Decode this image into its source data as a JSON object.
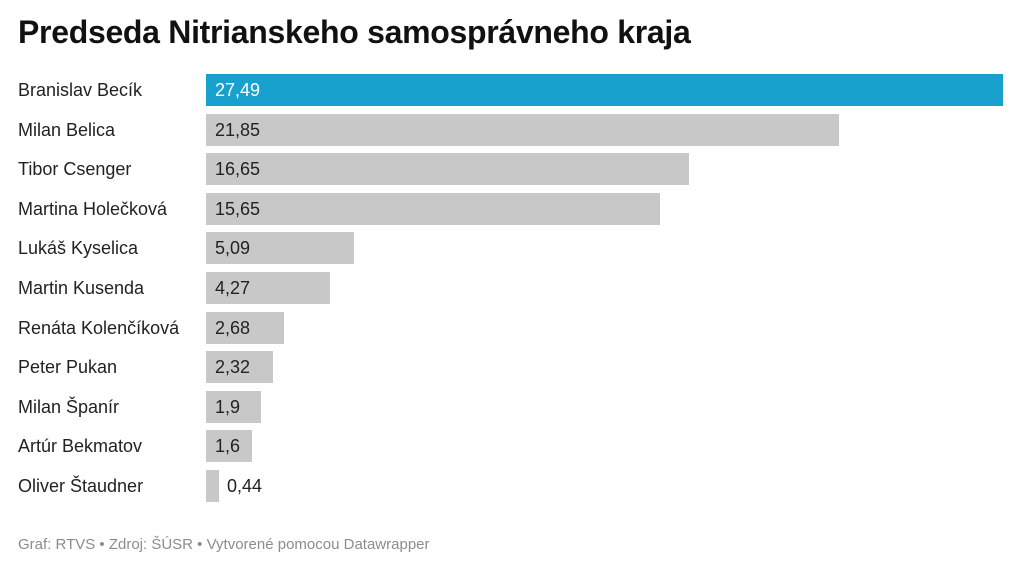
{
  "chart_data": {
    "type": "bar",
    "orientation": "horizontal",
    "title": "Predseda Nitrianskeho samosprávneho kraja",
    "categories": [
      "Branislav Becík",
      "Milan Belica",
      "Tibor Csenger",
      "Martina Holečková",
      "Lukáš Kyselica",
      "Martin Kusenda",
      "Renáta Kolenčíková",
      "Peter Pukan",
      "Milan Španír",
      "Artúr Bekmatov",
      "Oliver Štaudner"
    ],
    "values": [
      27.49,
      21.85,
      16.65,
      15.65,
      5.09,
      4.27,
      2.68,
      2.32,
      1.9,
      1.6,
      0.44
    ],
    "value_labels": [
      "27,49",
      "21,85",
      "16,65",
      "15,65",
      "5,09",
      "4,27",
      "2,68",
      "2,32",
      "1,9",
      "1,6",
      "0,44"
    ],
    "xlim": [
      0,
      27.49
    ],
    "grid": false,
    "highlight_index": 0,
    "colors": {
      "highlight": "#18a1cd",
      "default": "#c8c8c8"
    }
  },
  "footer": "Graf: RTVS • Zdroj: ŠÚSR • Vytvorené pomocou Datawrapper"
}
